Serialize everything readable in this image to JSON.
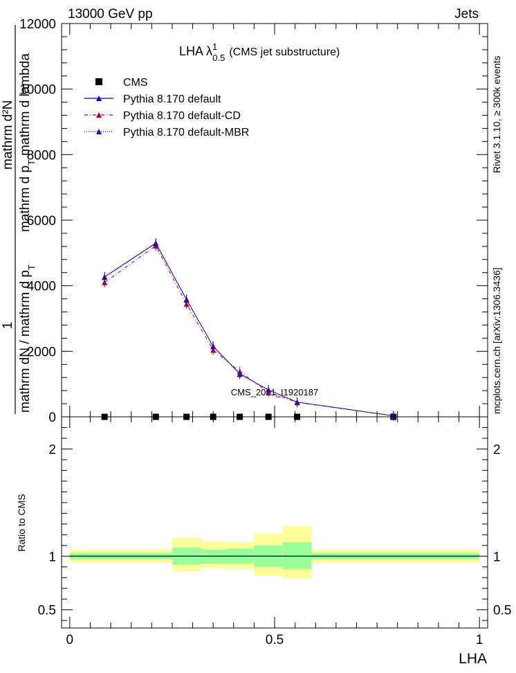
{
  "header": {
    "left_label": "13000 GeV pp",
    "right_label": "Jets",
    "side_rivet": "Rivet 3.1.10, ≥ 300k events",
    "side_mcplots": "mcplots.cern.ch [arXiv:1306.3436]"
  },
  "chart_data": [
    {
      "type": "line",
      "title": "LHA λ¹₀.₅ (CMS jet substructure)",
      "title_main": "LHA λ",
      "title_sup": "1",
      "title_sub": "0.5",
      "title_suffix": "(CMS jet substructure)",
      "watermark": "CMS_2021_I1920187",
      "ylabel_numerator": "1",
      "ylabel_denominator": "mathrm dN / mathrm d p",
      "ylabel_denominator_sub": "T",
      "ylabel_second_num": "mathrm d²N",
      "ylabel_second_den": "mathrm d p",
      "ylabel_second_den_sub": "T",
      "ylabel_second_den_suffix": "mathrm d lambda",
      "ylim": [
        0,
        12000
      ],
      "xlim": [
        -0.02,
        1.02
      ],
      "y_ticks": [
        0,
        2000,
        4000,
        6000,
        8000,
        10000,
        12000
      ],
      "y_tick_labels": [
        "0",
        "2000",
        "4000",
        "6000",
        "8000",
        "10000",
        "12000"
      ],
      "legend_position": "top-left",
      "legend": [
        {
          "label": "CMS",
          "marker": "square",
          "color": "#000000",
          "line": "none"
        },
        {
          "label": "Pythia 8.170 default",
          "marker": "triangle",
          "color": "#0000cc",
          "line": "solid"
        },
        {
          "label": "Pythia 8.170 default-CD",
          "marker": "triangle",
          "color": "#aa0033",
          "line": "dashdot"
        },
        {
          "label": "Pythia 8.170 default-MBR",
          "marker": "triangle",
          "color": "#330099",
          "line": "dotted"
        }
      ],
      "series": [
        {
          "name": "CMS",
          "x": [
            0.085,
            0.21,
            0.285,
            0.35,
            0.415,
            0.485,
            0.555,
            0.79
          ],
          "y": [
            0,
            0,
            0,
            0,
            0,
            0,
            0,
            0
          ]
        },
        {
          "name": "Pythia 8.170 default",
          "x": [
            0.085,
            0.21,
            0.285,
            0.35,
            0.415,
            0.485,
            0.555,
            0.79
          ],
          "y": [
            4270,
            5300,
            3580,
            2150,
            1310,
            820,
            450,
            30
          ]
        },
        {
          "name": "Pythia 8.170 default-CD",
          "x": [
            0.085,
            0.21,
            0.285,
            0.35,
            0.415,
            0.485,
            0.555,
            0.79
          ],
          "y": [
            4100,
            5220,
            3440,
            2040,
            1380,
            750,
            440,
            30
          ]
        },
        {
          "name": "Pythia 8.170 default-MBR",
          "x": [
            0.085,
            0.21,
            0.285,
            0.35,
            0.415,
            0.485,
            0.555,
            0.79
          ],
          "y": [
            4260,
            5290,
            3570,
            2160,
            1300,
            820,
            450,
            30
          ]
        }
      ]
    },
    {
      "type": "area",
      "ylabel": "Ratio to CMS",
      "xlabel": "LHA",
      "xlim": [
        -0.02,
        1.02
      ],
      "ylim": [
        0.33,
        2.3
      ],
      "y_ticks": [
        0.5,
        1,
        2
      ],
      "y_tick_labels": [
        "0.5",
        "1",
        "2"
      ],
      "x_ticks": [
        0,
        0.5,
        1
      ],
      "x_tick_labels": [
        "0",
        "0.5",
        "1"
      ],
      "bins": [
        {
          "x0": 0.0,
          "x1": 0.25,
          "inner": [
            0.97,
            1.03
          ],
          "outer": [
            0.94,
            1.06
          ]
        },
        {
          "x0": 0.25,
          "x1": 0.32,
          "inner": [
            0.92,
            1.08
          ],
          "outer": [
            0.86,
            1.17
          ]
        },
        {
          "x0": 0.32,
          "x1": 0.38,
          "inner": [
            0.93,
            1.06
          ],
          "outer": [
            0.89,
            1.14
          ]
        },
        {
          "x0": 0.38,
          "x1": 0.45,
          "inner": [
            0.93,
            1.07
          ],
          "outer": [
            0.88,
            1.13
          ]
        },
        {
          "x0": 0.45,
          "x1": 0.52,
          "inner": [
            0.9,
            1.1
          ],
          "outer": [
            0.82,
            1.21
          ]
        },
        {
          "x0": 0.52,
          "x1": 0.59,
          "inner": [
            0.88,
            1.13
          ],
          "outer": [
            0.79,
            1.28
          ]
        },
        {
          "x0": 0.59,
          "x1": 1.0,
          "inner": [
            0.97,
            1.03
          ],
          "outer": [
            0.94,
            1.06
          ]
        }
      ],
      "colors": {
        "inner": "#99ff99",
        "outer": "#ffff99",
        "reference": "#000000"
      }
    }
  ]
}
